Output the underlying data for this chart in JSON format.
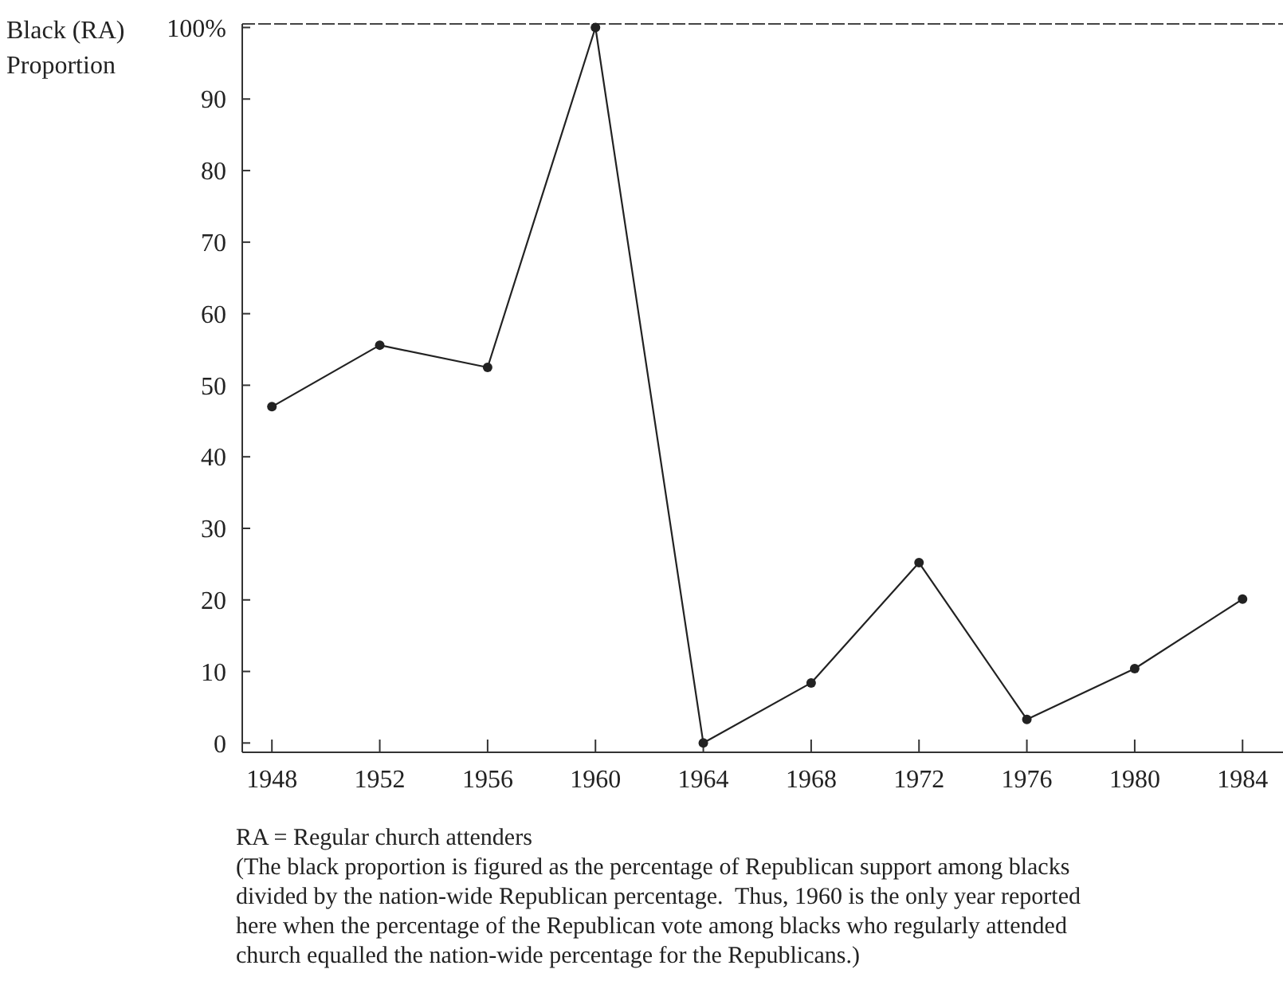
{
  "chart_data": {
    "type": "line",
    "ylabel": "Black (RA)\nProportion",
    "x": [
      1948,
      1952,
      1956,
      1960,
      1964,
      1968,
      1972,
      1976,
      1980,
      1984
    ],
    "series": [
      {
        "color": "#222222",
        "values": [
          47,
          55.6,
          52.5,
          100,
          0,
          8.4,
          25.2,
          3.3,
          10.4,
          20.1
        ]
      }
    ],
    "xlim": [
      1946.9,
      1985.5
    ],
    "xticks": [
      1948,
      1952,
      1956,
      1960,
      1964,
      1968,
      1972,
      1976,
      1980,
      1984
    ],
    "ylim": [
      -1.3,
      100.5
    ],
    "yticks": [
      0,
      10,
      20,
      30,
      40,
      50,
      60,
      70,
      80,
      90,
      {
        "value": 100,
        "label": "100%"
      }
    ],
    "marker": "circle",
    "line_style": "solid",
    "annotations": [
      "RA = Regular church attenders",
      "(The black proportion is figured as the percentage of Republican support among blacks\ndivided by the nation-wide Republican percentage.  Thus, 1960 is the only year reported\nhere when the percentage of the Republican vote among blacks who regularly attended\nchurch equalled the nation-wide percentage for the Republicans.)"
    ]
  }
}
